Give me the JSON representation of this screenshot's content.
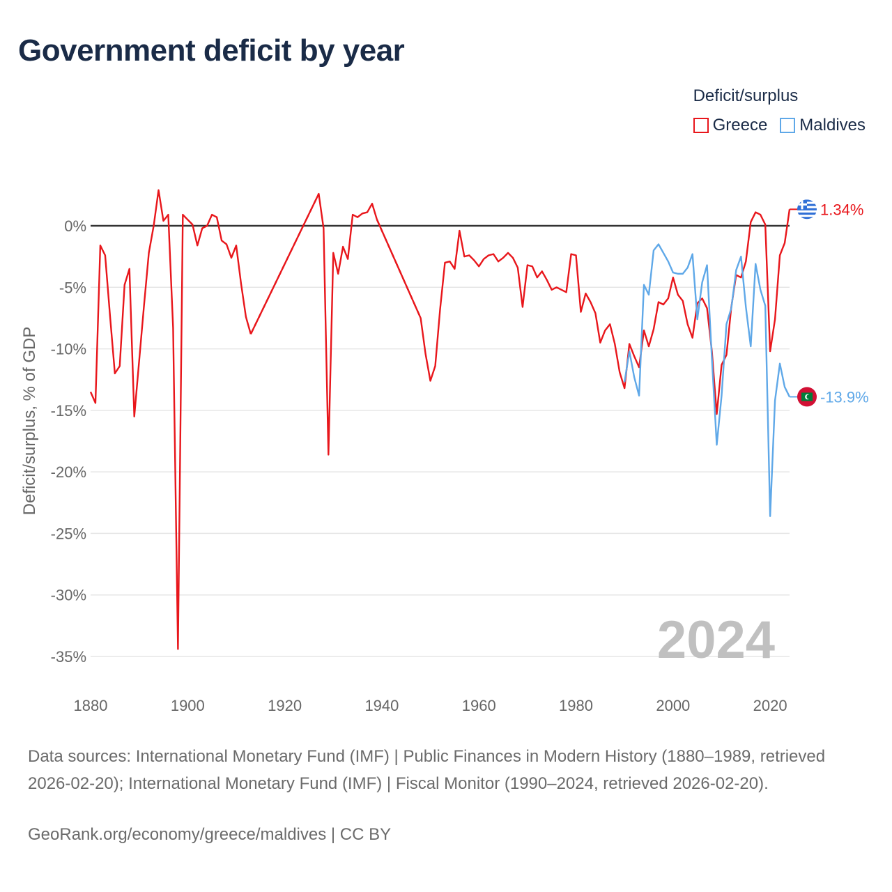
{
  "title": "Government deficit by year",
  "legend": {
    "title": "Deficit/surplus",
    "items": [
      {
        "label": "Greece",
        "color": "#e8161b"
      },
      {
        "label": "Maldives",
        "color": "#5fa8e8"
      }
    ]
  },
  "year_watermark": "2024",
  "sources": "Data sources: International Monetary Fund (IMF) | Public Finances in Modern History (1880–1989, retrieved 2026-02-20); International Monetary Fund (IMF) | Fiscal Monitor (1990–2024, retrieved 2026-02-20).",
  "credit": "GeoRank.org/economy/greece/maldives | CC BY",
  "chart_data": {
    "type": "line",
    "title": "Government deficit by year",
    "xlabel": "",
    "ylabel": "Deficit/surplus, % of GDP",
    "xlim": [
      1880,
      2024
    ],
    "ylim": [
      -35,
      0
    ],
    "x_ticks": [
      1880,
      1900,
      1920,
      1940,
      1960,
      1980,
      2000,
      2020
    ],
    "y_ticks": [
      0,
      -5,
      -10,
      -15,
      -20,
      -25,
      -30,
      -35
    ],
    "y_tick_labels": [
      "0%",
      "-5%",
      "-10%",
      "-15%",
      "-20%",
      "-25%",
      "-30%",
      "-35%"
    ],
    "zero_line": true,
    "end_labels": [
      {
        "series": "Greece",
        "text": "1.34%",
        "value": 1.34
      },
      {
        "series": "Maldives",
        "text": "-13.9%",
        "value": -13.9
      }
    ],
    "series": [
      {
        "name": "Greece",
        "color": "#e8161b",
        "points": [
          [
            1880,
            -13.5
          ],
          [
            1881,
            -14.4
          ],
          [
            1882,
            -1.6
          ],
          [
            1883,
            -2.4
          ],
          [
            1884,
            -7.3
          ],
          [
            1885,
            -12.0
          ],
          [
            1886,
            -11.4
          ],
          [
            1887,
            -4.8
          ],
          [
            1888,
            -3.5
          ],
          [
            1889,
            -15.5
          ],
          [
            1890,
            -11.0
          ],
          [
            1891,
            -6.5
          ],
          [
            1892,
            -2.2
          ],
          [
            1893,
            0.0
          ],
          [
            1894,
            2.9
          ],
          [
            1895,
            0.4
          ],
          [
            1896,
            0.9
          ],
          [
            1897,
            -8.3
          ],
          [
            1898,
            -34.4
          ],
          [
            1899,
            0.9
          ],
          [
            1900,
            0.5
          ],
          [
            1901,
            0.1
          ],
          [
            1902,
            -1.6
          ],
          [
            1903,
            -0.2
          ],
          [
            1904,
            0.0
          ],
          [
            1905,
            0.9
          ],
          [
            1906,
            0.7
          ],
          [
            1907,
            -1.2
          ],
          [
            1908,
            -1.5
          ],
          [
            1909,
            -2.6
          ],
          [
            1910,
            -1.6
          ],
          [
            1911,
            -4.7
          ],
          [
            1912,
            -7.4
          ],
          [
            1913,
            -8.8
          ],
          [
            1927,
            2.6
          ],
          [
            1928,
            -0.2
          ],
          [
            1929,
            -18.6
          ],
          [
            1930,
            -2.2
          ],
          [
            1931,
            -3.9
          ],
          [
            1932,
            -1.7
          ],
          [
            1933,
            -2.7
          ],
          [
            1934,
            0.9
          ],
          [
            1935,
            0.7
          ],
          [
            1936,
            1.0
          ],
          [
            1937,
            1.1
          ],
          [
            1938,
            1.8
          ],
          [
            1939,
            0.5
          ],
          [
            1948,
            -7.5
          ],
          [
            1949,
            -10.4
          ],
          [
            1950,
            -12.6
          ],
          [
            1951,
            -11.4
          ],
          [
            1952,
            -6.8
          ],
          [
            1953,
            -3.0
          ],
          [
            1954,
            -2.9
          ],
          [
            1955,
            -3.5
          ],
          [
            1956,
            -0.4
          ],
          [
            1957,
            -2.5
          ],
          [
            1958,
            -2.4
          ],
          [
            1959,
            -2.8
          ],
          [
            1960,
            -3.3
          ],
          [
            1961,
            -2.7
          ],
          [
            1962,
            -2.4
          ],
          [
            1963,
            -2.3
          ],
          [
            1964,
            -2.9
          ],
          [
            1965,
            -2.6
          ],
          [
            1966,
            -2.2
          ],
          [
            1967,
            -2.6
          ],
          [
            1968,
            -3.4
          ],
          [
            1969,
            -6.6
          ],
          [
            1970,
            -3.2
          ],
          [
            1971,
            -3.3
          ],
          [
            1972,
            -4.2
          ],
          [
            1973,
            -3.7
          ],
          [
            1974,
            -4.4
          ],
          [
            1975,
            -5.2
          ],
          [
            1976,
            -5.0
          ],
          [
            1977,
            -5.2
          ],
          [
            1978,
            -5.4
          ],
          [
            1979,
            -2.3
          ],
          [
            1980,
            -2.4
          ],
          [
            1981,
            -7.0
          ],
          [
            1982,
            -5.5
          ],
          [
            1983,
            -6.2
          ],
          [
            1984,
            -7.1
          ],
          [
            1985,
            -9.5
          ],
          [
            1986,
            -8.5
          ],
          [
            1987,
            -8.0
          ],
          [
            1988,
            -9.6
          ],
          [
            1989,
            -11.9
          ],
          [
            1990,
            -13.2
          ],
          [
            1991,
            -9.6
          ],
          [
            1992,
            -10.6
          ],
          [
            1993,
            -11.5
          ],
          [
            1994,
            -8.5
          ],
          [
            1995,
            -9.8
          ],
          [
            1996,
            -8.4
          ],
          [
            1997,
            -6.2
          ],
          [
            1998,
            -6.4
          ],
          [
            1999,
            -5.9
          ],
          [
            2000,
            -4.2
          ],
          [
            2001,
            -5.6
          ],
          [
            2002,
            -6.1
          ],
          [
            2003,
            -8.0
          ],
          [
            2004,
            -9.1
          ],
          [
            2005,
            -6.3
          ],
          [
            2006,
            -5.9
          ],
          [
            2007,
            -6.7
          ],
          [
            2008,
            -10.2
          ],
          [
            2009,
            -15.3
          ],
          [
            2010,
            -11.3
          ],
          [
            2011,
            -10.5
          ],
          [
            2012,
            -6.6
          ],
          [
            2013,
            -4.0
          ],
          [
            2014,
            -4.2
          ],
          [
            2015,
            -2.9
          ],
          [
            2016,
            0.3
          ],
          [
            2017,
            1.1
          ],
          [
            2018,
            0.9
          ],
          [
            2019,
            0.1
          ],
          [
            2020,
            -10.2
          ],
          [
            2021,
            -7.6
          ],
          [
            2022,
            -2.4
          ],
          [
            2023,
            -1.4
          ],
          [
            2024,
            1.34
          ]
        ],
        "gaps": [
          [
            1913,
            1927
          ],
          [
            1939,
            1948
          ]
        ]
      },
      {
        "name": "Maldives",
        "color": "#5fa8e8",
        "points": [
          [
            1990,
            -12.7
          ],
          [
            1991,
            -10.2
          ],
          [
            1992,
            -12.3
          ],
          [
            1993,
            -13.8
          ],
          [
            1994,
            -4.8
          ],
          [
            1995,
            -5.6
          ],
          [
            1996,
            -2.0
          ],
          [
            1997,
            -1.5
          ],
          [
            1998,
            -2.2
          ],
          [
            1999,
            -2.9
          ],
          [
            2000,
            -3.8
          ],
          [
            2001,
            -3.9
          ],
          [
            2002,
            -3.9
          ],
          [
            2003,
            -3.4
          ],
          [
            2004,
            -2.3
          ],
          [
            2005,
            -7.6
          ],
          [
            2006,
            -4.6
          ],
          [
            2007,
            -3.2
          ],
          [
            2008,
            -10.8
          ],
          [
            2009,
            -17.8
          ],
          [
            2010,
            -13.8
          ],
          [
            2011,
            -8.0
          ],
          [
            2012,
            -6.7
          ],
          [
            2013,
            -3.6
          ],
          [
            2014,
            -2.5
          ],
          [
            2015,
            -6.6
          ],
          [
            2016,
            -9.8
          ],
          [
            2017,
            -3.1
          ],
          [
            2018,
            -5.2
          ],
          [
            2019,
            -6.5
          ],
          [
            2020,
            -23.6
          ],
          [
            2021,
            -14.2
          ],
          [
            2022,
            -11.2
          ],
          [
            2023,
            -13.1
          ],
          [
            2024,
            -13.9
          ]
        ],
        "gaps": []
      }
    ]
  }
}
